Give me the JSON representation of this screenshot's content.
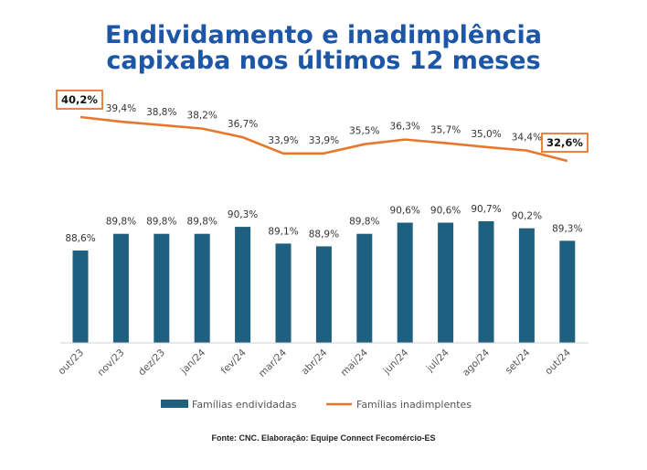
{
  "title_line1": "Endividamento e inadimplência",
  "title_line2": "capixaba nos últimos 12 meses",
  "source": "Fonte: CNC.  Elaboração: Equipe Connect Fecomércio-ES",
  "colors": {
    "title": "#1c56a5",
    "bar": "#1f5f7f",
    "line": "#e8772e",
    "highlight_box": "#e8772e"
  },
  "chart_data": {
    "type": "bar+line",
    "categories": [
      "out/23",
      "nov/23",
      "dez/23",
      "jan/24",
      "fev/24",
      "mar/24",
      "abr/24",
      "mai/24",
      "jun/24",
      "jul/24",
      "ago/24",
      "set/24",
      "out/24"
    ],
    "series": [
      {
        "name": "Famílias endividadas",
        "type": "bar",
        "values": [
          88.6,
          89.8,
          89.8,
          89.8,
          90.3,
          89.1,
          88.9,
          89.8,
          90.6,
          90.6,
          90.7,
          90.2,
          89.3
        ],
        "labels": [
          "88,6%",
          "89,8%",
          "89,8%",
          "89,8%",
          "90,3%",
          "89,1%",
          "88,9%",
          "89,8%",
          "90,6%",
          "90,6%",
          "90,7%",
          "90,2%",
          "89,3%"
        ]
      },
      {
        "name": "Famílias inadimplentes",
        "type": "line",
        "values": [
          40.2,
          39.4,
          38.8,
          38.2,
          36.7,
          33.9,
          33.9,
          35.5,
          36.3,
          35.7,
          35.0,
          34.4,
          32.6
        ],
        "labels": [
          "40,2%",
          "39,4%",
          "38,8%",
          "38,2%",
          "36,7%",
          "33,9%",
          "33,9%",
          "35,5%",
          "36,3%",
          "35,7%",
          "35,0%",
          "34,4%",
          "32,6%"
        ],
        "highlighted": [
          "40,2%",
          "32,6%"
        ]
      }
    ],
    "legend_placement": "bottom",
    "grid": false
  }
}
